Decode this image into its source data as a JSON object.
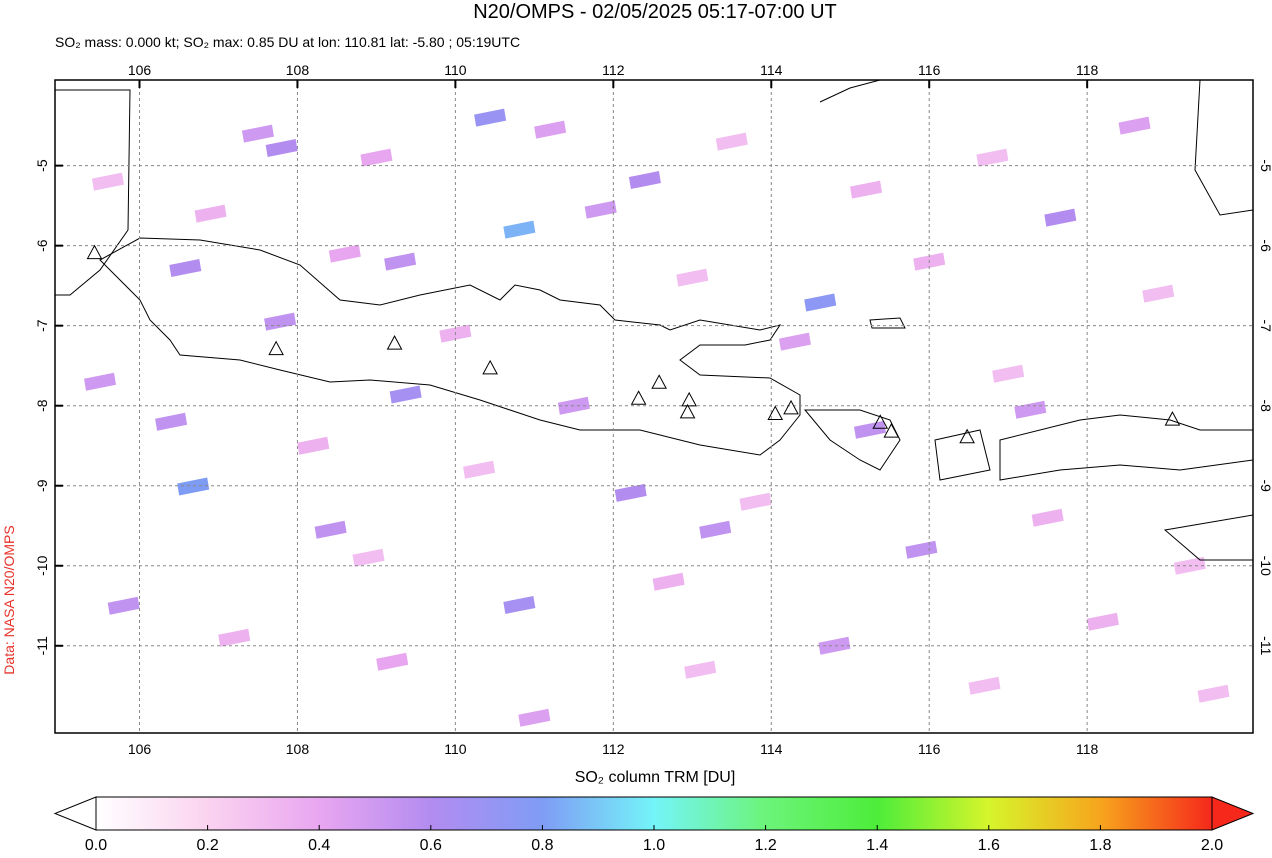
{
  "chart_data": {
    "type": "map",
    "title": "N20/OMPS - 02/05/2025 05:17-07:00 UT",
    "subtitle": "SO₂ mass: 0.000 kt; SO₂ max: 0.85 DU at lon: 110.81 lat: -5.80 ; 05:19UTC",
    "side_label": "Data: NASA N20/OMPS",
    "colorbar_label": "SO₂ column TRM [DU]",
    "xlim": [
      104.93,
      120.1
    ],
    "ylim": [
      -12.09,
      -3.93
    ],
    "xticks": [
      106,
      108,
      110,
      112,
      114,
      116,
      118
    ],
    "yticks": [
      -5,
      -6,
      -7,
      -8,
      -9,
      -10,
      -11
    ],
    "grid": true,
    "clim": [
      0,
      2
    ],
    "colorbar_ticks": [
      {
        "value": 0,
        "label": "0.0"
      },
      {
        "value": 0.2,
        "label": "0.2"
      },
      {
        "value": 0.4,
        "label": "0.4"
      },
      {
        "value": 0.6,
        "label": "0.6"
      },
      {
        "value": 0.8,
        "label": "0.8"
      },
      {
        "value": 1,
        "label": "1.0"
      },
      {
        "value": 1.2,
        "label": "1.2"
      },
      {
        "value": 1.4,
        "label": "1.4"
      },
      {
        "value": 1.6,
        "label": "1.6"
      },
      {
        "value": 1.8,
        "label": "1.8"
      },
      {
        "value": 2,
        "label": "2.0"
      }
    ],
    "colormap": [
      "#ffffff",
      "#fbd3f0",
      "#e8a6f0",
      "#b38cf0",
      "#7f9cf5",
      "#74f4f8",
      "#6cf47a",
      "#4ded3a",
      "#d6f52b",
      "#f7a51d",
      "#f5281b"
    ],
    "volcanoes": [
      {
        "lon": 107.73,
        "lat": -7.3
      },
      {
        "lon": 109.23,
        "lat": -7.23
      },
      {
        "lon": 110.44,
        "lat": -7.54
      },
      {
        "lon": 112.32,
        "lat": -7.92
      },
      {
        "lon": 112.58,
        "lat": -7.72
      },
      {
        "lon": 112.96,
        "lat": -7.94
      },
      {
        "lon": 112.94,
        "lat": -8.09
      },
      {
        "lon": 114.05,
        "lat": -8.11
      },
      {
        "lon": 114.25,
        "lat": -8.04
      },
      {
        "lon": 115.38,
        "lat": -8.22
      },
      {
        "lon": 115.52,
        "lat": -8.33
      },
      {
        "lon": 116.48,
        "lat": -8.4
      },
      {
        "lon": 119.08,
        "lat": -8.18
      },
      {
        "lon": 105.43,
        "lat": -6.1
      }
    ],
    "pixels": [
      {
        "lon": 107.8,
        "lat": -4.78,
        "value": 0.6
      },
      {
        "lon": 110.44,
        "lat": -4.4,
        "value": 0.7
      },
      {
        "lon": 110.81,
        "lat": -5.8,
        "value": 0.85
      },
      {
        "lon": 109.37,
        "lat": -7.86,
        "value": 0.65
      },
      {
        "lon": 114.62,
        "lat": -6.71,
        "value": 0.75
      },
      {
        "lon": 106.68,
        "lat": -9.01,
        "value": 0.8
      },
      {
        "lon": 110.81,
        "lat": -10.49,
        "value": 0.65
      },
      {
        "lon": 112.4,
        "lat": -5.18,
        "value": 0.6
      },
      {
        "lon": 106.58,
        "lat": -6.28,
        "value": 0.6
      },
      {
        "lon": 108.42,
        "lat": -9.55,
        "value": 0.55
      },
      {
        "lon": 113.29,
        "lat": -9.55,
        "value": 0.55
      },
      {
        "lon": 112.22,
        "lat": -9.09,
        "value": 0.6
      },
      {
        "lon": 117.66,
        "lat": -5.65,
        "value": 0.6
      },
      {
        "lon": 115.25,
        "lat": -8.3,
        "value": 0.55
      },
      {
        "lon": 117.28,
        "lat": -8.05,
        "value": 0.5
      },
      {
        "lon": 107.78,
        "lat": -6.95,
        "value": 0.55
      },
      {
        "lon": 111.84,
        "lat": -5.55,
        "value": 0.5
      },
      {
        "lon": 107.5,
        "lat": -4.6,
        "value": 0.5
      },
      {
        "lon": 109.0,
        "lat": -4.9,
        "value": 0.4
      },
      {
        "lon": 111.2,
        "lat": -4.55,
        "value": 0.45
      },
      {
        "lon": 113.5,
        "lat": -4.7,
        "value": 0.3
      },
      {
        "lon": 115.2,
        "lat": -5.3,
        "value": 0.35
      },
      {
        "lon": 116.8,
        "lat": -4.9,
        "value": 0.3
      },
      {
        "lon": 118.6,
        "lat": -4.5,
        "value": 0.45
      },
      {
        "lon": 105.6,
        "lat": -5.2,
        "value": 0.3
      },
      {
        "lon": 106.9,
        "lat": -5.6,
        "value": 0.35
      },
      {
        "lon": 108.6,
        "lat": -6.1,
        "value": 0.4
      },
      {
        "lon": 109.3,
        "lat": -6.2,
        "value": 0.55
      },
      {
        "lon": 113.0,
        "lat": -6.4,
        "value": 0.3
      },
      {
        "lon": 116.0,
        "lat": -6.2,
        "value": 0.35
      },
      {
        "lon": 118.9,
        "lat": -6.6,
        "value": 0.3
      },
      {
        "lon": 105.5,
        "lat": -7.7,
        "value": 0.5
      },
      {
        "lon": 106.4,
        "lat": -8.2,
        "value": 0.55
      },
      {
        "lon": 108.2,
        "lat": -8.5,
        "value": 0.35
      },
      {
        "lon": 110.3,
        "lat": -8.8,
        "value": 0.3
      },
      {
        "lon": 111.5,
        "lat": -8.0,
        "value": 0.5
      },
      {
        "lon": 113.8,
        "lat": -9.2,
        "value": 0.3
      },
      {
        "lon": 115.9,
        "lat": -9.8,
        "value": 0.55
      },
      {
        "lon": 117.5,
        "lat": -9.4,
        "value": 0.35
      },
      {
        "lon": 119.3,
        "lat": -10.0,
        "value": 0.3
      },
      {
        "lon": 105.8,
        "lat": -10.5,
        "value": 0.55
      },
      {
        "lon": 107.2,
        "lat": -10.9,
        "value": 0.35
      },
      {
        "lon": 109.2,
        "lat": -11.2,
        "value": 0.4
      },
      {
        "lon": 111.0,
        "lat": -11.9,
        "value": 0.45
      },
      {
        "lon": 113.1,
        "lat": -11.3,
        "value": 0.3
      },
      {
        "lon": 114.8,
        "lat": -11.0,
        "value": 0.5
      },
      {
        "lon": 116.7,
        "lat": -11.5,
        "value": 0.3
      },
      {
        "lon": 118.2,
        "lat": -10.7,
        "value": 0.35
      },
      {
        "lon": 119.6,
        "lat": -11.6,
        "value": 0.3
      },
      {
        "lon": 112.7,
        "lat": -10.2,
        "value": 0.35
      },
      {
        "lon": 108.9,
        "lat": -9.9,
        "value": 0.3
      },
      {
        "lon": 114.3,
        "lat": -7.2,
        "value": 0.45
      },
      {
        "lon": 117.0,
        "lat": -7.6,
        "value": 0.3
      },
      {
        "lon": 110.0,
        "lat": -7.1,
        "value": 0.35
      }
    ]
  }
}
